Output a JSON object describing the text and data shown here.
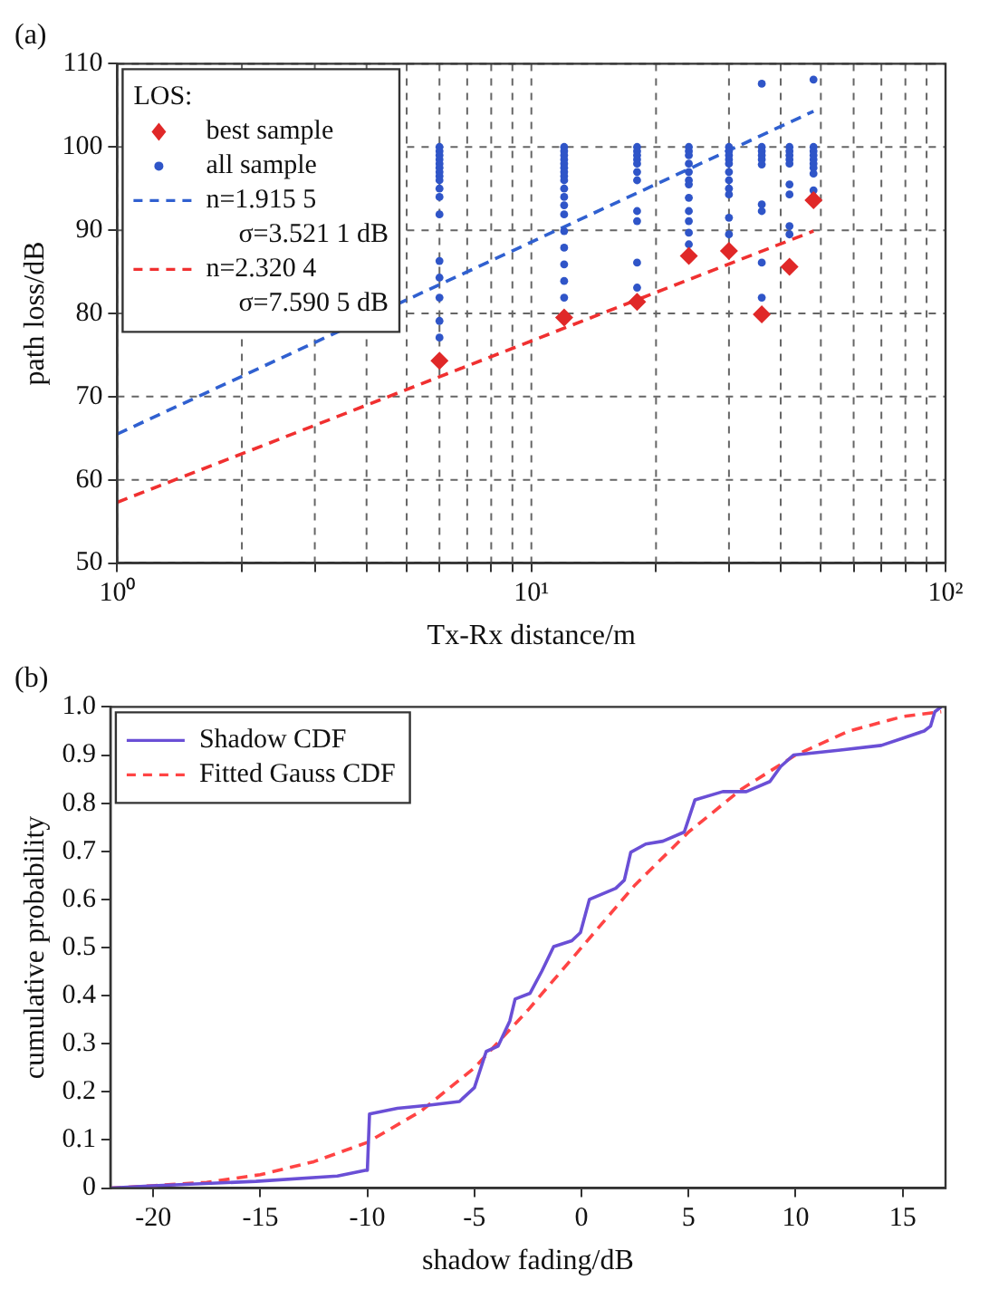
{
  "chart_data": [
    {
      "type": "scatter",
      "title": "(a)",
      "xlabel": "Tx-Rx distance/m",
      "ylabel": "path loss/dB",
      "log": "x",
      "xlim": [
        1,
        100
      ],
      "xticks": [
        {
          "value": 1,
          "label": "10⁰"
        },
        {
          "value": 2,
          "label": null
        },
        {
          "value": 3,
          "label": null
        },
        {
          "value": 4,
          "label": null
        },
        {
          "value": 5,
          "label": null
        },
        {
          "value": 6,
          "label": null
        },
        {
          "value": 7,
          "label": null
        },
        {
          "value": 8,
          "label": null
        },
        {
          "value": 9,
          "label": null
        },
        {
          "value": 10,
          "label": "10¹"
        },
        {
          "value": 20,
          "label": null
        },
        {
          "value": 30,
          "label": null
        },
        {
          "value": 40,
          "label": null
        },
        {
          "value": 50,
          "label": null
        },
        {
          "value": 60,
          "label": null
        },
        {
          "value": 70,
          "label": null
        },
        {
          "value": 80,
          "label": null
        },
        {
          "value": 90,
          "label": null
        },
        {
          "value": 100,
          "label": "10²"
        }
      ],
      "ylim": [
        50,
        110
      ],
      "yticks": [
        50,
        60,
        70,
        80,
        90,
        100,
        110
      ],
      "grid": true,
      "legend": "top left",
      "legend_title": "LOS:",
      "annotations": [
        "σ=3.521 1 dB",
        "σ=7.590 5 dB"
      ],
      "series": [
        {
          "name": "best sample",
          "type": "scatter",
          "marker": "diamond",
          "color": "#e02828",
          "x": [
            6,
            12,
            18,
            24,
            30,
            36,
            42,
            48
          ],
          "values": [
            74.3,
            79.5,
            81.4,
            86.9,
            87.5,
            79.9,
            85.6,
            93.6
          ]
        },
        {
          "name": "all sample",
          "type": "scatter",
          "marker": "circle",
          "color": "#2f55c8",
          "x": [
            6,
            6,
            6,
            6,
            6,
            6,
            6,
            6,
            6,
            6,
            6,
            6,
            6,
            6,
            6,
            6,
            6,
            12,
            12,
            12,
            12,
            12,
            12,
            12,
            12,
            12,
            12,
            12,
            12,
            12,
            12,
            12,
            12,
            12,
            12,
            18,
            18,
            18,
            18,
            18,
            18,
            18,
            18,
            18,
            18,
            18,
            24,
            24,
            24,
            24,
            24,
            24,
            24,
            24,
            24,
            24,
            24,
            24,
            30,
            30,
            30,
            30,
            30,
            30,
            30,
            30,
            30,
            30,
            30,
            36,
            36,
            36,
            36,
            36,
            36,
            36,
            36,
            36,
            36,
            42,
            42,
            42,
            42,
            42,
            42,
            42,
            42,
            42,
            48,
            48,
            48,
            48,
            48,
            48,
            48,
            48,
            48
          ],
          "values": [
            100,
            99.5,
            99,
            98.5,
            98,
            97.5,
            97,
            96.5,
            96,
            95,
            94,
            91.9,
            86.3,
            84.3,
            81.9,
            79.1,
            77.1,
            100,
            99.5,
            99,
            98.5,
            98,
            97.5,
            97,
            96.5,
            96,
            95,
            94,
            93,
            91.9,
            89.9,
            87.9,
            85.9,
            83.9,
            81.9,
            100,
            99.5,
            99,
            98.5,
            98,
            97,
            96,
            92.3,
            91.1,
            86.1,
            83.1,
            100,
            99.5,
            99,
            98,
            97,
            96,
            95.5,
            93.9,
            92.3,
            91.1,
            89.7,
            88.3,
            100,
            99.5,
            99,
            98.5,
            98,
            97,
            96,
            95,
            94.3,
            91.5,
            89.5,
            107.6,
            100,
            99.5,
            99,
            98.5,
            97.9,
            93.1,
            92.3,
            86.1,
            81.9,
            100,
            99.5,
            99,
            98.5,
            98,
            95.5,
            94.3,
            90.5,
            89.5,
            108.1,
            100,
            99.5,
            99,
            98.5,
            98,
            97.5,
            96.8,
            94.8
          ]
        },
        {
          "name": "n=1.915 5",
          "type": "line",
          "marker": "none",
          "line_style": "dashed",
          "color": "#3060d0",
          "x": [
            1,
            48
          ],
          "values": [
            65.5,
            104.3
          ]
        },
        {
          "name": "n=2.320 4",
          "type": "line",
          "marker": "none",
          "line_style": "dashed",
          "color": "#f03030",
          "x": [
            1,
            48
          ],
          "values": [
            57.3,
            89.9
          ]
        }
      ]
    },
    {
      "type": "line",
      "title": "(b)",
      "xlabel": "shadow fading/dB",
      "ylabel": "cumulative probability",
      "xlim": [
        -22,
        17
      ],
      "xticks": [
        -20,
        -15,
        -10,
        -5,
        0,
        5,
        10,
        15
      ],
      "ylim": [
        0,
        1
      ],
      "yticks": [
        0,
        0.1,
        0.2,
        0.3,
        0.4,
        0.5,
        0.6,
        0.7,
        0.8,
        0.9,
        {
          "value": 1,
          "label": "1.0"
        }
      ],
      "legend": "top left",
      "series": [
        {
          "name": "Shadow CDF",
          "line_style": "solid",
          "color": "#6a4fd6",
          "x": [
            -22,
            -20,
            -15.2,
            -11.4,
            -10.1,
            -10,
            -9.9,
            -8.6,
            -7.2,
            -5.7,
            -5,
            -4.45,
            -3.9,
            -3.35,
            -3.1,
            -2.4,
            -1.85,
            -1.3,
            -0.45,
            -0.05,
            0.37,
            1.6,
            2,
            2.3,
            3,
            3.8,
            4.8,
            5.3,
            6.6,
            7.7,
            8.8,
            9.3,
            9.9,
            12,
            14,
            15,
            16,
            16.3,
            16.5,
            16.8
          ],
          "values": [
            0,
            0.005,
            0.014,
            0.025,
            0.037,
            0.037,
            0.154,
            0.166,
            0.172,
            0.18,
            0.209,
            0.284,
            0.295,
            0.347,
            0.393,
            0.405,
            0.451,
            0.502,
            0.514,
            0.531,
            0.6,
            0.623,
            0.64,
            0.698,
            0.715,
            0.721,
            0.74,
            0.807,
            0.824,
            0.824,
            0.845,
            0.876,
            0.9,
            0.91,
            0.92,
            0.935,
            0.95,
            0.96,
            0.99,
            1.0
          ]
        },
        {
          "name": "Fitted Gauss CDF",
          "line_style": "dashed",
          "color": "#ff4444",
          "x": [
            -22,
            -20,
            -17.5,
            -15,
            -12.5,
            -10,
            -7.5,
            -5,
            -2.5,
            0,
            2.5,
            5,
            7.5,
            10,
            12.5,
            15,
            16.8
          ],
          "values": [
            0,
            0.005,
            0.012,
            0.028,
            0.055,
            0.095,
            0.16,
            0.25,
            0.37,
            0.5,
            0.63,
            0.74,
            0.83,
            0.9,
            0.95,
            0.98,
            0.99
          ]
        }
      ]
    }
  ]
}
